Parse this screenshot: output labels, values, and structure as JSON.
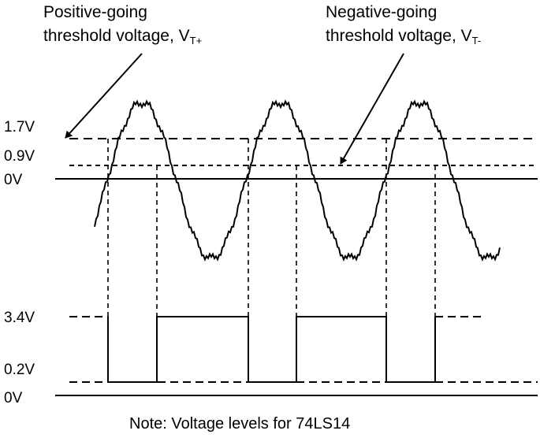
{
  "annotations": {
    "positive": {
      "line1": "Positive-going",
      "line2_prefix": "threshold voltage, V",
      "line2_sub": "T+"
    },
    "negative": {
      "line1": "Negative-going",
      "line2_prefix": "threshold voltage, V",
      "line2_sub": "T-"
    }
  },
  "input_levels": [
    "1.7V",
    "0.9V",
    "0V"
  ],
  "output_levels": [
    "3.4V",
    "0.2V",
    "0V"
  ],
  "note": "Note: Voltage levels for 74LS14",
  "colors": {
    "line": "#000000",
    "background": "#ffffff"
  }
}
